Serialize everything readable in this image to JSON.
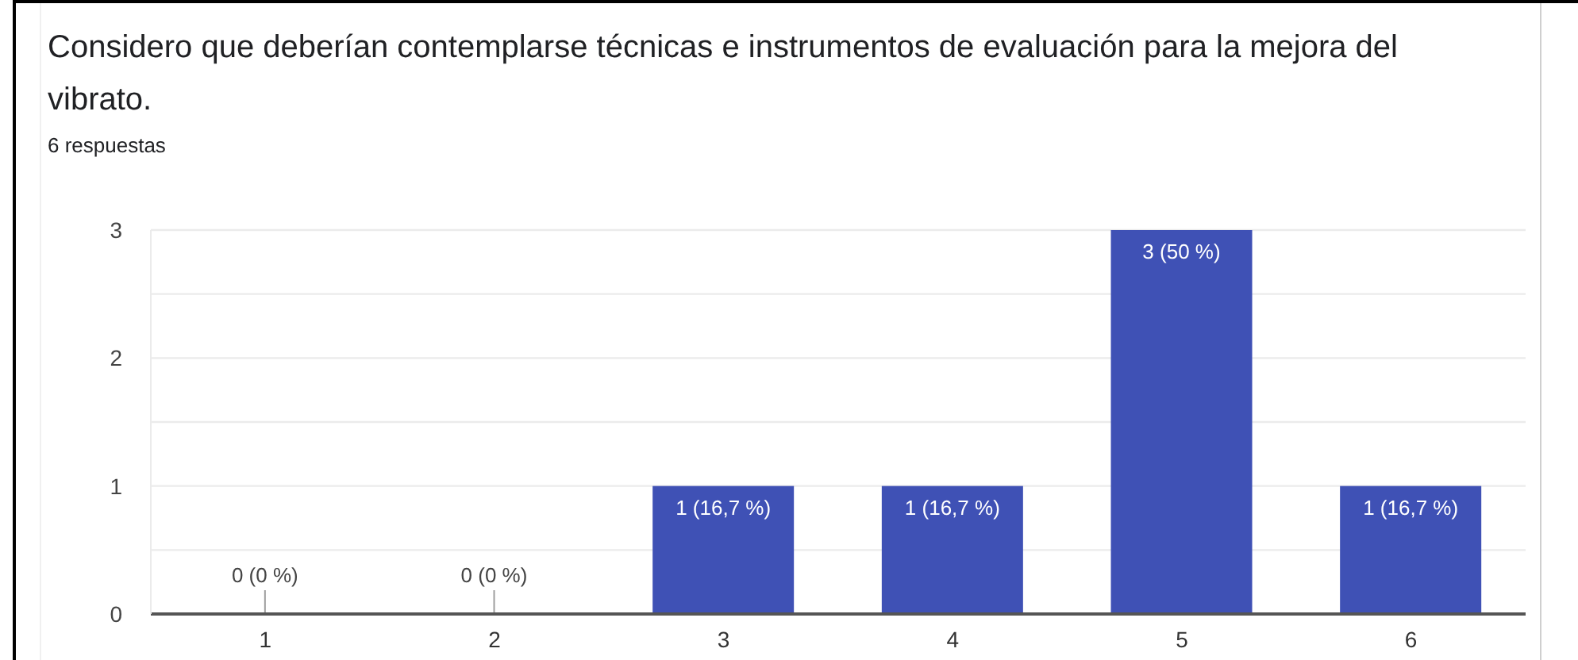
{
  "chart_data": {
    "type": "bar",
    "title": "Considero que deberían contemplarse técnicas e instrumentos de evaluación para la mejora del vibrato.",
    "subtitle": "6 respuestas",
    "categories": [
      "1",
      "2",
      "3",
      "4",
      "5",
      "6"
    ],
    "values": [
      0,
      0,
      1,
      1,
      3,
      1
    ],
    "color": "#3f51b5",
    "value_labels": [
      "0 (0 %)",
      "0 (0 %)",
      "1 (16,7 %)",
      "1 (16,7 %)",
      "3 (50 %)",
      "1 (16,7 %)"
    ],
    "ylim": [
      0,
      3
    ],
    "yticks": [
      0,
      {
        "value": 0.5,
        "label": null
      },
      1,
      {
        "value": 1.5,
        "label": null
      },
      2,
      {
        "value": 2.5,
        "label": null
      },
      3
    ],
    "grid": "y"
  }
}
